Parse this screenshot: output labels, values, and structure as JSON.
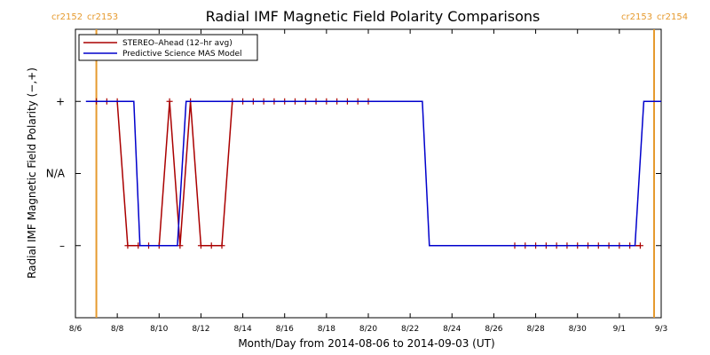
{
  "chart_data": {
    "type": "line",
    "title": "Radial IMF Magnetic Field Polarity Comparisons",
    "xlabel": "Month/Day from 2014-08-06 to 2014-09-03 (UT)",
    "ylabel": "Radial IMF Magnetic Field Polarity (−,+)",
    "xlim": [
      "2014-08-06T00:00",
      "2014-09-03T00:00"
    ],
    "ylim": [
      -2,
      2
    ],
    "x_ticks": [
      {
        "label": "8/6",
        "x": "2014-08-06"
      },
      {
        "label": "8/8",
        "x": "2014-08-08"
      },
      {
        "label": "8/10",
        "x": "2014-08-10"
      },
      {
        "label": "8/12",
        "x": "2014-08-12"
      },
      {
        "label": "8/14",
        "x": "2014-08-14"
      },
      {
        "label": "8/16",
        "x": "2014-08-16"
      },
      {
        "label": "8/18",
        "x": "2014-08-18"
      },
      {
        "label": "8/20",
        "x": "2014-08-20"
      },
      {
        "label": "8/22",
        "x": "2014-08-22"
      },
      {
        "label": "8/24",
        "x": "2014-08-24"
      },
      {
        "label": "8/26",
        "x": "2014-08-26"
      },
      {
        "label": "8/28",
        "x": "2014-08-28"
      },
      {
        "label": "8/30",
        "x": "2014-08-30"
      },
      {
        "label": "9/1",
        "x": "2014-09-01"
      },
      {
        "label": "9/3",
        "x": "2014-09-03"
      }
    ],
    "y_ticks": [
      {
        "label": "+",
        "y": 1
      },
      {
        "label": "N/A",
        "y": 0
      },
      {
        "label": "–",
        "y": -1
      }
    ],
    "carrington_markers": [
      {
        "x": "2014-08-07T00:00",
        "left_label": "cr2152",
        "right_label": "cr2153"
      },
      {
        "x": "2014-09-03T00:00",
        "left_label": "cr2153",
        "right_label": "cr2154"
      }
    ],
    "legend_position": "top-left",
    "series": [
      {
        "name": "STEREO–Ahead (12–hr avg)",
        "color": "#aa0000",
        "marker": "+",
        "points": [
          {
            "x": "2014-08-07T00:00",
            "y": 1
          },
          {
            "x": "2014-08-07T12:00",
            "y": 1
          },
          {
            "x": "2014-08-08T00:00",
            "y": 1
          },
          {
            "x": "2014-08-08T12:00",
            "y": -1
          },
          {
            "x": "2014-08-09T00:00",
            "y": -1
          },
          {
            "x": "2014-08-09T12:00",
            "y": -1
          },
          {
            "x": "2014-08-10T00:00",
            "y": -1
          },
          {
            "x": "2014-08-10T12:00",
            "y": 1
          },
          {
            "x": "2014-08-11T00:00",
            "y": -1
          },
          {
            "x": "2014-08-11T12:00",
            "y": 1
          },
          {
            "x": "2014-08-12T00:00",
            "y": -1
          },
          {
            "x": "2014-08-12T12:00",
            "y": -1
          },
          {
            "x": "2014-08-13T00:00",
            "y": -1
          },
          {
            "x": "2014-08-13T12:00",
            "y": 1
          },
          {
            "x": "2014-08-14T00:00",
            "y": 1
          },
          {
            "x": "2014-08-14T12:00",
            "y": 1
          },
          {
            "x": "2014-08-15T00:00",
            "y": 1
          },
          {
            "x": "2014-08-15T12:00",
            "y": 1
          },
          {
            "x": "2014-08-16T00:00",
            "y": 1
          },
          {
            "x": "2014-08-16T12:00",
            "y": 1
          },
          {
            "x": "2014-08-17T00:00",
            "y": 1
          },
          {
            "x": "2014-08-17T12:00",
            "y": 1
          },
          {
            "x": "2014-08-18T00:00",
            "y": 1
          },
          {
            "x": "2014-08-18T12:00",
            "y": 1
          },
          {
            "x": "2014-08-19T00:00",
            "y": 1
          },
          {
            "x": "2014-08-19T12:00",
            "y": 1
          },
          {
            "x": "2014-08-20T00:00",
            "y": 1
          },
          {
            "x": "2014-08-27T00:00",
            "y": -1
          },
          {
            "x": "2014-08-27T12:00",
            "y": -1
          },
          {
            "x": "2014-08-28T00:00",
            "y": -1
          },
          {
            "x": "2014-08-28T12:00",
            "y": -1
          },
          {
            "x": "2014-08-29T00:00",
            "y": -1
          },
          {
            "x": "2014-08-29T12:00",
            "y": -1
          },
          {
            "x": "2014-08-30T00:00",
            "y": -1
          },
          {
            "x": "2014-08-30T12:00",
            "y": -1
          },
          {
            "x": "2014-08-31T00:00",
            "y": -1
          },
          {
            "x": "2014-08-31T12:00",
            "y": -1
          },
          {
            "x": "2014-09-01T00:00",
            "y": -1
          },
          {
            "x": "2014-09-01T12:00",
            "y": -1
          },
          {
            "x": "2014-09-02T00:00",
            "y": -1
          }
        ],
        "segments": [
          [
            0,
            26
          ],
          [
            27,
            39
          ]
        ]
      },
      {
        "name": "Predictive Science MAS Model",
        "color": "#0000cc",
        "marker": "",
        "points": [
          {
            "x": "2014-08-06T12:00",
            "y": 1
          },
          {
            "x": "2014-08-08T19:00",
            "y": 1
          },
          {
            "x": "2014-08-09T02:00",
            "y": -1
          },
          {
            "x": "2014-08-10T21:00",
            "y": -1
          },
          {
            "x": "2014-08-11T07:00",
            "y": 1
          },
          {
            "x": "2014-08-22T14:00",
            "y": 1
          },
          {
            "x": "2014-08-22T22:00",
            "y": -1
          },
          {
            "x": "2014-09-01T18:00",
            "y": -1
          },
          {
            "x": "2014-09-02T04:00",
            "y": 1
          },
          {
            "x": "2014-09-03T00:00",
            "y": 1
          }
        ]
      }
    ]
  }
}
